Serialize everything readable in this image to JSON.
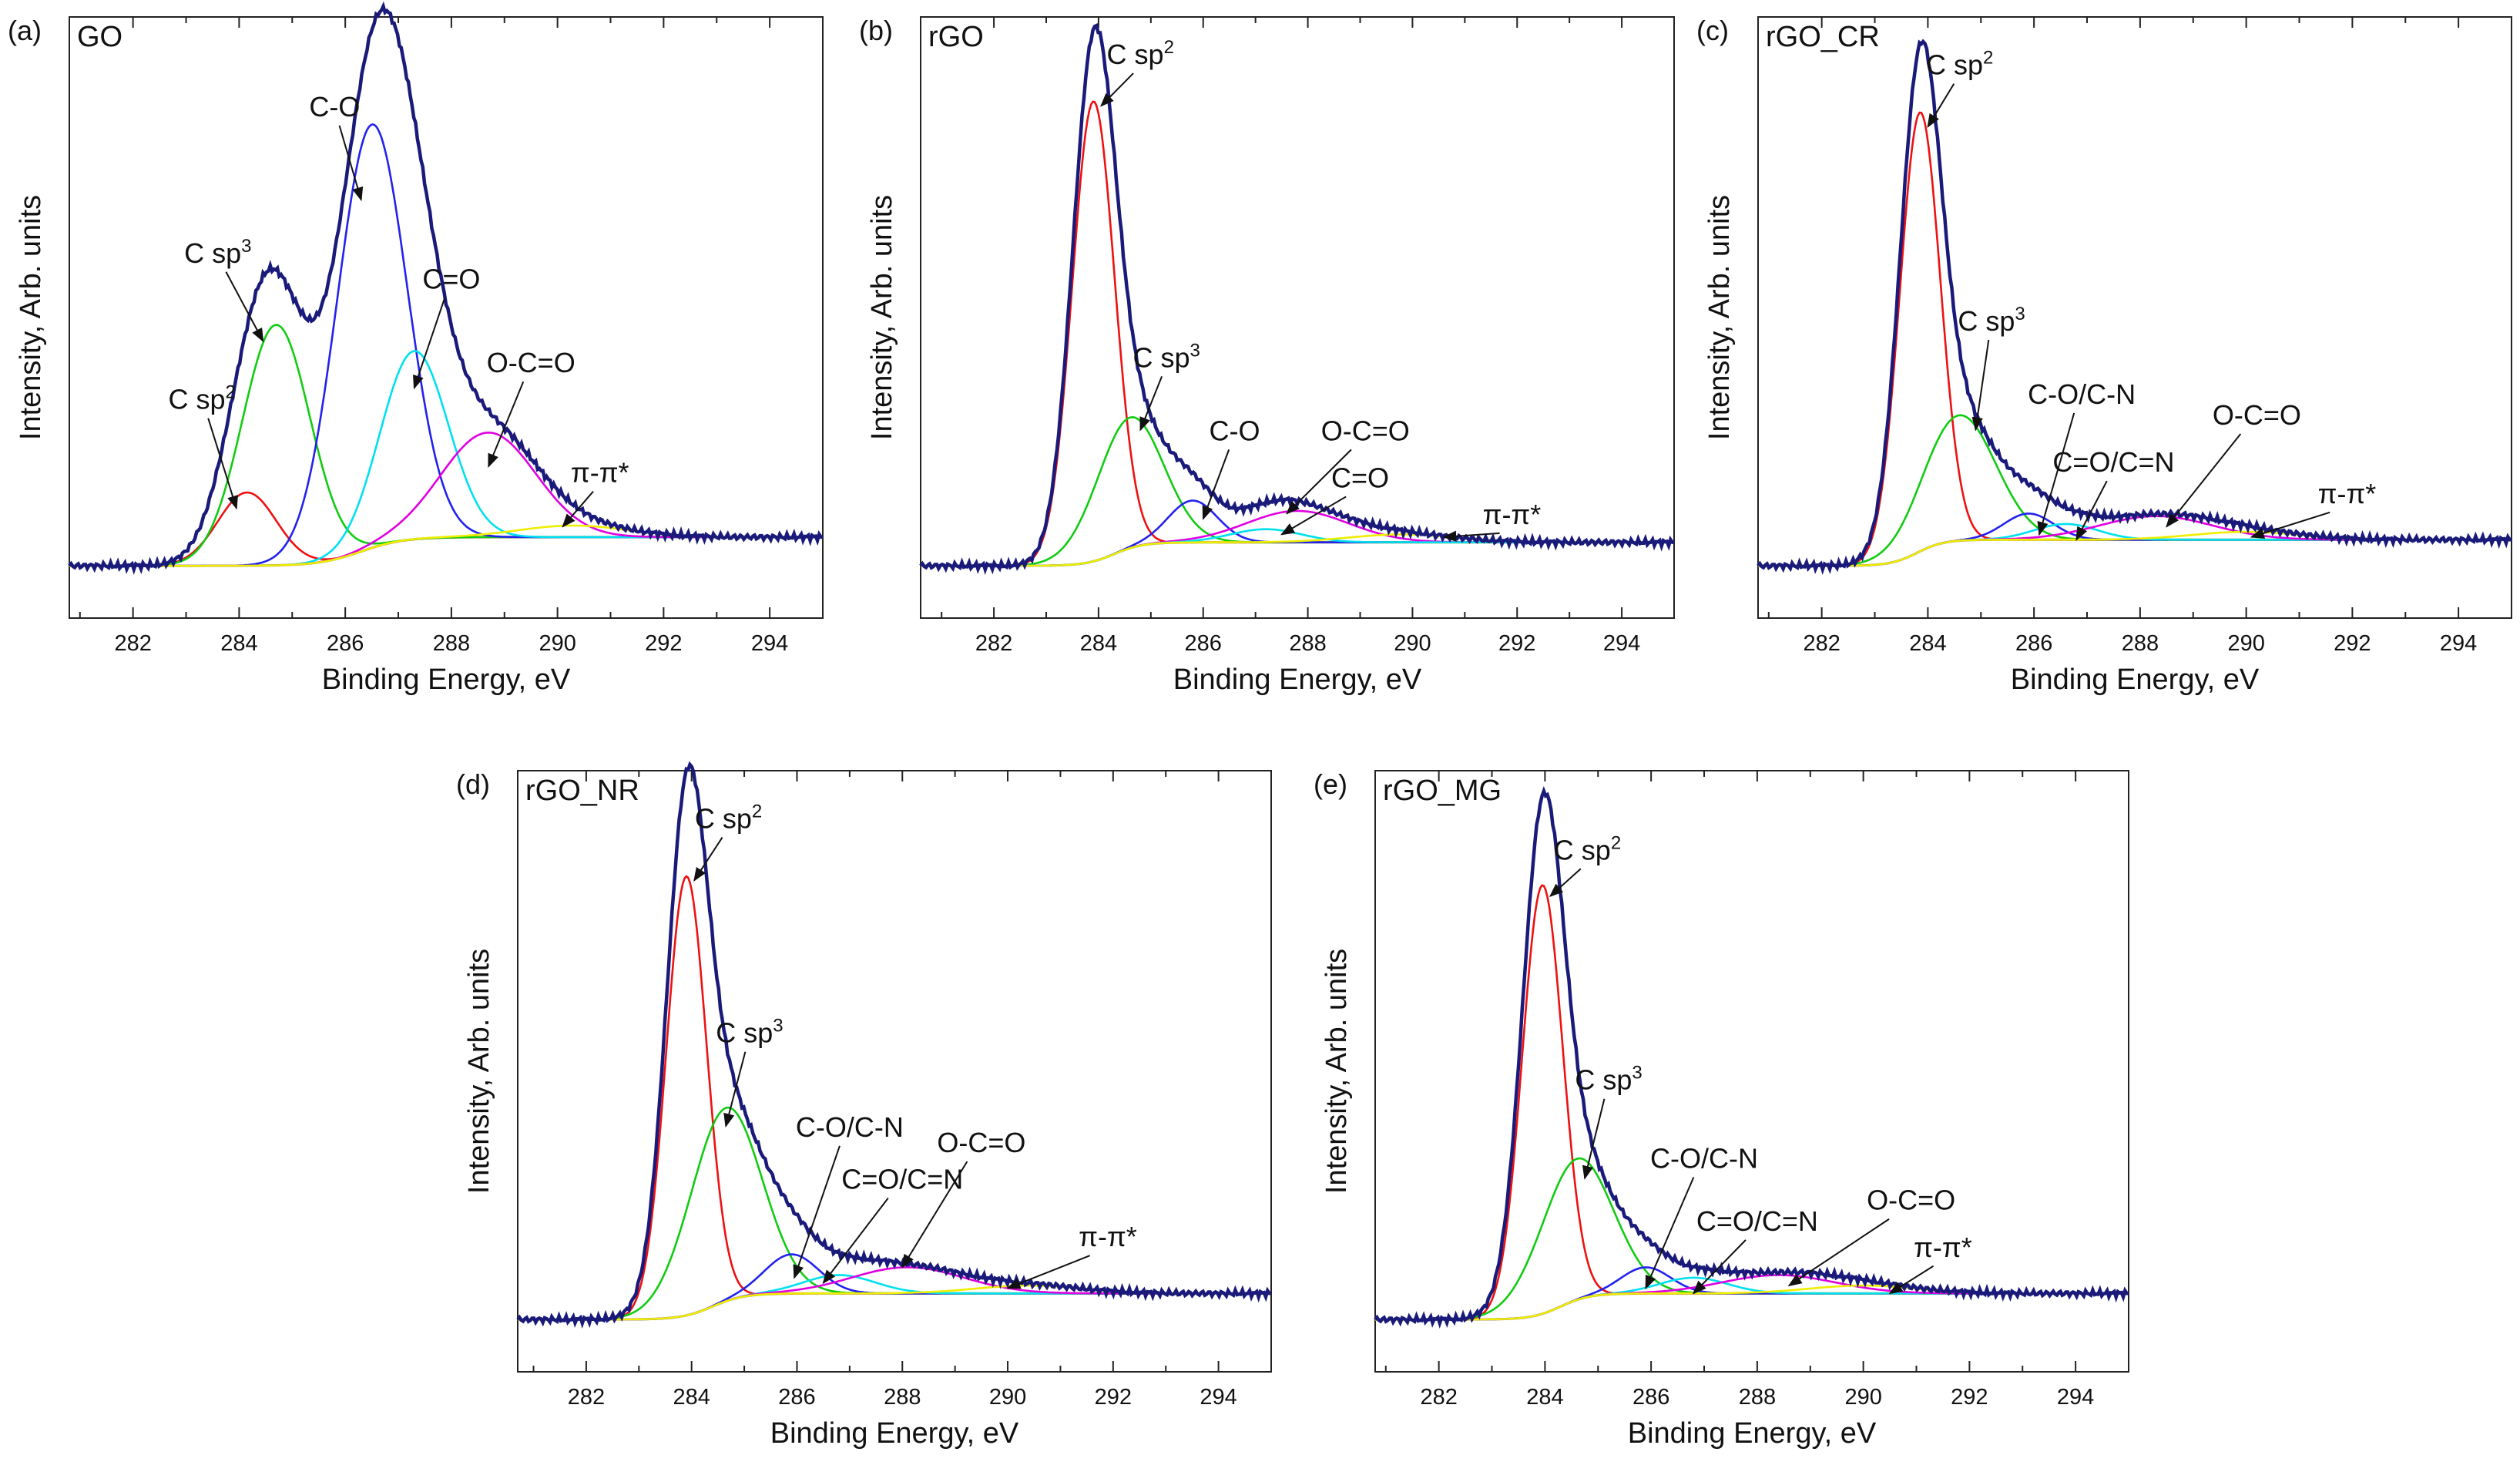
{
  "figure": {
    "x_tick_labels": [
      "282",
      "284",
      "286",
      "288",
      "290",
      "292",
      "294"
    ]
  },
  "component_colors": {
    "envelope": "#1a1a7a",
    "sp2": "#ee1111",
    "sp3": "#11cc11",
    "co": "#2222ee",
    "c_eq_o": "#00e0ee",
    "o_c_eq_o": "#e000e0",
    "pipi": "#eeee00",
    "baseline": "#8a8a20"
  },
  "chart_data": [
    {
      "type": "line",
      "panel": "(a)",
      "sample": "GO",
      "xlabel": "Binding Energy, eV",
      "ylabel": "Intensity, Arb. units",
      "xlim": [
        280.8,
        295
      ],
      "ylim": [
        -0.1,
        1.05
      ],
      "grid": false,
      "legend": "none",
      "ticks": [
        282,
        284,
        286,
        288,
        290,
        292,
        294
      ],
      "baseline": {
        "left": 0.0,
        "right": 0.055,
        "center": 286.3,
        "width": 1.6
      },
      "series": [
        {
          "name": "C sp2",
          "label": "C sp",
          "sup": "2",
          "color_key": "sp2",
          "center": 284.15,
          "height": 0.14,
          "fwhm": 1.3,
          "label_pos": [
            283.3,
            0.3
          ],
          "arrow_to": [
            283.95,
            0.11
          ]
        },
        {
          "name": "C sp3",
          "label": "C sp",
          "sup": "3",
          "color_key": "sp3",
          "center": 284.7,
          "height": 0.46,
          "fwhm": 1.5,
          "label_pos": [
            283.6,
            0.58
          ],
          "arrow_to": [
            284.45,
            0.43
          ]
        },
        {
          "name": "C-O",
          "label": "C-O",
          "color_key": "co",
          "center": 286.5,
          "height": 0.81,
          "fwhm": 1.55,
          "label_pos": [
            285.8,
            0.86
          ],
          "arrow_to": [
            286.3,
            0.7
          ]
        },
        {
          "name": "C=O",
          "label": "C=O",
          "color_key": "c_eq_o",
          "center": 287.3,
          "height": 0.36,
          "fwhm": 1.5,
          "label_pos": [
            288.0,
            0.53
          ],
          "arrow_to": [
            287.3,
            0.34
          ]
        },
        {
          "name": "O-C=O",
          "label": "O-C=O",
          "color_key": "o_c_eq_o",
          "center": 288.7,
          "height": 0.2,
          "fwhm": 2.1,
          "label_pos": [
            289.5,
            0.37
          ],
          "arrow_to": [
            288.7,
            0.19
          ]
        },
        {
          "name": "π-π*",
          "label": "π-π*",
          "color_key": "pipi",
          "center": 290.3,
          "height": 0.022,
          "fwhm": 2.4,
          "label_pos": [
            290.8,
            0.16
          ],
          "arrow_to": [
            290.1,
            0.075
          ]
        }
      ]
    },
    {
      "type": "line",
      "panel": "(b)",
      "sample": "rGO",
      "xlabel": "Binding Energy, eV",
      "ylabel": "Intensity, Arb. units",
      "xlim": [
        280.6,
        295
      ],
      "ylim": [
        -0.1,
        1.05
      ],
      "grid": false,
      "legend": "none",
      "ticks": [
        282,
        284,
        286,
        288,
        290,
        292,
        294
      ],
      "baseline": {
        "left": 0.0,
        "right": 0.045,
        "center": 284.3,
        "width": 1.1
      },
      "series": [
        {
          "name": "C sp2",
          "label": "C sp",
          "sup": "2",
          "color_key": "sp2",
          "center": 283.9,
          "height": 0.88,
          "fwhm": 0.95,
          "label_pos": [
            284.8,
            0.96
          ],
          "arrow_to": [
            284.05,
            0.88
          ]
        },
        {
          "name": "C sp3",
          "label": "C sp",
          "sup": "3",
          "color_key": "sp3",
          "center": 284.6,
          "height": 0.25,
          "fwhm": 1.5,
          "label_pos": [
            285.3,
            0.38
          ],
          "arrow_to": [
            284.8,
            0.26
          ]
        },
        {
          "name": "C-O",
          "label": "C-O",
          "color_key": "co",
          "center": 285.8,
          "height": 0.08,
          "fwhm": 1.1,
          "label_pos": [
            286.6,
            0.24
          ],
          "arrow_to": [
            286.0,
            0.09
          ]
        },
        {
          "name": "O-C=O",
          "label": "O-C=O",
          "color_key": "o_c_eq_o",
          "center": 287.8,
          "height": 0.06,
          "fwhm": 2.3,
          "label_pos": [
            289.1,
            0.24
          ],
          "arrow_to": [
            287.6,
            0.1
          ]
        },
        {
          "name": "C=O",
          "label": "C=O",
          "color_key": "c_eq_o",
          "center": 287.2,
          "height": 0.025,
          "fwhm": 1.6,
          "label_pos": [
            289.0,
            0.15
          ],
          "arrow_to": [
            287.5,
            0.06
          ]
        },
        {
          "name": "π-π*",
          "label": "π-π*",
          "color_key": "pipi",
          "center": 289.8,
          "height": 0.015,
          "fwhm": 2.4,
          "label_pos": [
            291.9,
            0.08
          ],
          "arrow_to": [
            290.6,
            0.055
          ]
        }
      ]
    },
    {
      "type": "line",
      "panel": "(c)",
      "sample": "rGO_CR",
      "xlabel": "Binding Energy, eV",
      "ylabel": "Intensity, Arb. units",
      "xlim": [
        280.8,
        295
      ],
      "ylim": [
        -0.1,
        1.05
      ],
      "grid": false,
      "legend": "none",
      "ticks": [
        282,
        284,
        286,
        288,
        290,
        292,
        294
      ],
      "baseline": {
        "left": 0.0,
        "right": 0.05,
        "center": 283.8,
        "width": 1.0
      },
      "series": [
        {
          "name": "C sp2",
          "label": "C sp",
          "sup": "2",
          "color_key": "sp2",
          "center": 283.85,
          "height": 0.84,
          "fwhm": 0.9,
          "label_pos": [
            284.6,
            0.94
          ],
          "arrow_to": [
            284.0,
            0.84
          ]
        },
        {
          "name": "C sp3",
          "label": "C sp",
          "sup": "3",
          "color_key": "sp3",
          "center": 284.6,
          "height": 0.24,
          "fwhm": 1.6,
          "label_pos": [
            285.2,
            0.45
          ],
          "arrow_to": [
            284.9,
            0.26
          ]
        },
        {
          "name": "C-O/C-N",
          "label": "C-O/C-N",
          "color_key": "co",
          "center": 285.9,
          "height": 0.05,
          "fwhm": 1.1,
          "label_pos": [
            286.9,
            0.31
          ],
          "arrow_to": [
            286.1,
            0.06
          ]
        },
        {
          "name": "C=O/C=N",
          "label": "C=O/C=N",
          "color_key": "c_eq_o",
          "center": 286.6,
          "height": 0.03,
          "fwhm": 1.4,
          "label_pos": [
            287.5,
            0.18
          ],
          "arrow_to": [
            286.8,
            0.05
          ]
        },
        {
          "name": "O-C=O",
          "label": "O-C=O",
          "color_key": "o_c_eq_o",
          "center": 288.3,
          "height": 0.045,
          "fwhm": 2.5,
          "label_pos": [
            290.2,
            0.27
          ],
          "arrow_to": [
            288.5,
            0.075
          ]
        },
        {
          "name": "π-π*",
          "label": "π-π*",
          "color_key": "pipi",
          "center": 290.0,
          "height": 0.015,
          "fwhm": 2.4,
          "label_pos": [
            291.9,
            0.12
          ],
          "arrow_to": [
            290.1,
            0.055
          ]
        }
      ]
    },
    {
      "type": "line",
      "panel": "(d)",
      "sample": "rGO_NR",
      "xlabel": "Binding Energy, eV",
      "ylabel": "Intensity, Arb. units",
      "xlim": [
        280.7,
        295
      ],
      "ylim": [
        -0.1,
        1.05
      ],
      "grid": false,
      "legend": "none",
      "ticks": [
        282,
        284,
        286,
        288,
        290,
        292,
        294
      ],
      "baseline": {
        "left": 0.0,
        "right": 0.05,
        "center": 284.4,
        "width": 1.2
      },
      "series": [
        {
          "name": "C sp2",
          "label": "C sp",
          "sup": "2",
          "color_key": "sp2",
          "center": 283.9,
          "height": 0.84,
          "fwhm": 0.9,
          "label_pos": [
            284.7,
            0.94
          ],
          "arrow_to": [
            284.05,
            0.84
          ]
        },
        {
          "name": "C sp3",
          "label": "C sp",
          "sup": "3",
          "color_key": "sp3",
          "center": 284.65,
          "height": 0.37,
          "fwhm": 1.6,
          "label_pos": [
            285.1,
            0.53
          ],
          "arrow_to": [
            284.65,
            0.37
          ]
        },
        {
          "name": "C-O/C-N",
          "label": "C-O/C-N",
          "color_key": "co",
          "center": 285.9,
          "height": 0.075,
          "fwhm": 1.2,
          "label_pos": [
            287.0,
            0.35
          ],
          "arrow_to": [
            285.95,
            0.08
          ]
        },
        {
          "name": "C=O/C=N",
          "label": "C=O/C=N",
          "color_key": "c_eq_o",
          "center": 286.8,
          "height": 0.035,
          "fwhm": 1.6,
          "label_pos": [
            288.0,
            0.25
          ],
          "arrow_to": [
            286.5,
            0.07
          ]
        },
        {
          "name": "O-C=O",
          "label": "O-C=O",
          "color_key": "o_c_eq_o",
          "center": 288.1,
          "height": 0.05,
          "fwhm": 2.5,
          "label_pos": [
            289.5,
            0.32
          ],
          "arrow_to": [
            288.0,
            0.1
          ]
        },
        {
          "name": "π-π*",
          "label": "π-π*",
          "color_key": "pipi",
          "center": 290.4,
          "height": 0.015,
          "fwhm": 2.4,
          "label_pos": [
            291.9,
            0.14
          ],
          "arrow_to": [
            290.0,
            0.06
          ]
        }
      ]
    },
    {
      "type": "line",
      "panel": "(e)",
      "sample": "rGO_MG",
      "xlabel": "Binding Energy, eV",
      "ylabel": "Intensity, Arb. units",
      "xlim": [
        280.8,
        295
      ],
      "ylim": [
        -0.1,
        1.05
      ],
      "grid": false,
      "legend": "none",
      "ticks": [
        282,
        284,
        286,
        288,
        290,
        292,
        294
      ],
      "baseline": {
        "left": 0.0,
        "right": 0.05,
        "center": 284.3,
        "width": 1.1
      },
      "series": [
        {
          "name": "C sp2",
          "label": "C sp",
          "sup": "2",
          "color_key": "sp2",
          "center": 283.95,
          "height": 0.82,
          "fwhm": 0.9,
          "label_pos": [
            284.8,
            0.88
          ],
          "arrow_to": [
            284.1,
            0.81
          ]
        },
        {
          "name": "C sp3",
          "label": "C sp",
          "sup": "3",
          "color_key": "sp3",
          "center": 284.6,
          "height": 0.27,
          "fwhm": 1.6,
          "label_pos": [
            285.2,
            0.44
          ],
          "arrow_to": [
            284.75,
            0.27
          ]
        },
        {
          "name": "C-O/C-N",
          "label": "C-O/C-N",
          "color_key": "co",
          "center": 285.9,
          "height": 0.05,
          "fwhm": 1.1,
          "label_pos": [
            287.0,
            0.29
          ],
          "arrow_to": [
            285.9,
            0.06
          ]
        },
        {
          "name": "C=O/C=N",
          "label": "C=O/C=N",
          "color_key": "c_eq_o",
          "center": 286.8,
          "height": 0.03,
          "fwhm": 1.5,
          "label_pos": [
            288.0,
            0.17
          ],
          "arrow_to": [
            286.8,
            0.05
          ]
        },
        {
          "name": "O-C=O",
          "label": "O-C=O",
          "color_key": "o_c_eq_o",
          "center": 288.4,
          "height": 0.035,
          "fwhm": 2.5,
          "label_pos": [
            290.9,
            0.21
          ],
          "arrow_to": [
            288.6,
            0.065
          ]
        },
        {
          "name": "π-π*",
          "label": "π-π*",
          "color_key": "pipi",
          "center": 290.0,
          "height": 0.015,
          "fwhm": 2.4,
          "label_pos": [
            291.5,
            0.12
          ],
          "arrow_to": [
            290.5,
            0.05
          ]
        }
      ]
    }
  ]
}
